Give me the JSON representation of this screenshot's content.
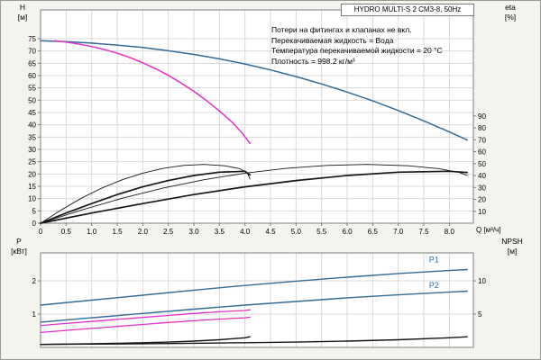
{
  "chart_data": [
    {
      "id": "hq",
      "type": "line",
      "title": "HYDRO MULTI-S 2 CM3-8, 50Hz",
      "notes": [
        "Потери на фитингах и клапанах не вкл.",
        "Перекачиваемая жидкость = Вода",
        "Температура перекачиваемой жидкости = 20 °C",
        "Плотность = 998.2 кг/м³"
      ],
      "x_label": "Q [м³/ч]",
      "xlim": [
        0,
        8.47
      ],
      "grid_x_step": 0.5,
      "x_ticks": [
        "0",
        "0.5",
        "1.0",
        "1.5",
        "2.0",
        "2.5",
        "3.0",
        "3.5",
        "4.0",
        "4.5",
        "5.0",
        "5.5",
        "6.0",
        "6.5",
        "7.0",
        "7.5",
        "8.0"
      ],
      "left_axis": {
        "label": "H",
        "unit": "[м]",
        "ticks": [
          0,
          5,
          10,
          15,
          20,
          25,
          30,
          35,
          40,
          45,
          50,
          55,
          60,
          65,
          70,
          75
        ],
        "lim": [
          0,
          86.7
        ]
      },
      "right_axis": {
        "label": "eta",
        "unit": "[%]",
        "ticks": [
          10,
          20,
          30,
          40,
          50,
          60,
          70,
          80,
          90
        ],
        "lim": [
          0,
          179
        ]
      },
      "series": [
        {
          "name": "H-2-pumps",
          "axis": "left",
          "color": "#336a94",
          "width": 1.5,
          "x": [
            0,
            0.5,
            1,
            1.5,
            2,
            2.5,
            3,
            3.5,
            4,
            4.5,
            5,
            5.5,
            6,
            6.5,
            7,
            7.5,
            8,
            8.35
          ],
          "y": [
            74.2,
            73.8,
            73.2,
            72.4,
            71.4,
            70.1,
            68.6,
            66.8,
            64.7,
            62.3,
            59.6,
            56.6,
            53.3,
            49.7,
            45.8,
            41.6,
            37.1,
            33.8
          ]
        },
        {
          "name": "H-1-pump",
          "axis": "left",
          "color": "#e233c6",
          "width": 1.5,
          "x": [
            0.28,
            0.5,
            0.75,
            1,
            1.25,
            1.5,
            1.75,
            2,
            2.25,
            2.5,
            2.75,
            3,
            3.25,
            3.5,
            3.75,
            3.95,
            4.1
          ],
          "y": [
            74.2,
            73.6,
            72.8,
            71.8,
            70.6,
            69.1,
            67.3,
            65.2,
            62.8,
            60.1,
            57.0,
            53.6,
            49.8,
            45.6,
            41.0,
            36.5,
            32.5
          ]
        },
        {
          "name": "eta-1-pump",
          "axis": "right",
          "color": "#161616",
          "width": 0.9,
          "x": [
            0,
            0.4,
            0.8,
            1.2,
            1.6,
            2,
            2.4,
            2.8,
            3.2,
            3.6,
            3.9,
            4.05,
            4.1
          ],
          "y": [
            0,
            11,
            21,
            29.5,
            36.5,
            42,
            46,
            48.5,
            49.3,
            48.2,
            45.8,
            42,
            37
          ]
        },
        {
          "name": "eta-2-pumps",
          "axis": "right",
          "color": "#161616",
          "width": 0.9,
          "x": [
            0,
            0.8,
            1.6,
            2.4,
            3.2,
            4,
            4.8,
            5.6,
            6.4,
            7.2,
            7.8,
            8.2,
            8.35
          ],
          "y": [
            0,
            11,
            21,
            29.5,
            36.5,
            42,
            46,
            48.5,
            49.3,
            48.2,
            45.8,
            42.5,
            40
          ]
        },
        {
          "name": "eta-1-pump-bold",
          "axis": "right",
          "color": "#161616",
          "width": 1.7,
          "x": [
            0,
            0.5,
            1,
            1.5,
            2,
            2.5,
            3,
            3.5,
            4,
            4.1
          ],
          "y": [
            0,
            8.5,
            16.5,
            24,
            30.5,
            35.8,
            40,
            42.8,
            43.6,
            40.5
          ]
        },
        {
          "name": "eta-2-pumps-bold",
          "axis": "right",
          "color": "#161616",
          "width": 1.7,
          "x": [
            0,
            1,
            2,
            3,
            4,
            5,
            6,
            7,
            8,
            8.35
          ],
          "y": [
            0,
            8.5,
            16.5,
            24,
            30.5,
            35.8,
            40,
            42.8,
            43.6,
            42.5
          ]
        }
      ]
    },
    {
      "id": "p-npsh",
      "type": "line",
      "xlim": [
        0,
        8.47
      ],
      "grid_x_step": 0.5,
      "x_ticks": [],
      "left_axis": {
        "label": "P",
        "unit": "[кВт]",
        "ticks": [
          1,
          2
        ],
        "lim": [
          0,
          2.84
        ]
      },
      "right_axis": {
        "label": "NPSH",
        "unit": "[м]",
        "ticks": [
          5,
          10
        ],
        "lim": [
          0,
          14.2
        ]
      },
      "series": [
        {
          "name": "P1-2-pumps",
          "axis": "left",
          "color": "#336a94",
          "width": 1.4,
          "x": [
            0,
            1,
            2,
            3,
            4,
            5,
            6,
            7,
            8,
            8.35
          ],
          "y": [
            1.27,
            1.42,
            1.57,
            1.72,
            1.86,
            1.99,
            2.11,
            2.22,
            2.31,
            2.34
          ]
        },
        {
          "name": "P2-2-pumps",
          "axis": "left",
          "color": "#336a94",
          "width": 1.4,
          "x": [
            0,
            1,
            2,
            3,
            4,
            5,
            6,
            7,
            8,
            8.35
          ],
          "y": [
            0.76,
            0.89,
            1.02,
            1.15,
            1.27,
            1.38,
            1.49,
            1.58,
            1.66,
            1.69
          ]
        },
        {
          "name": "P1-1-pump",
          "axis": "left",
          "color": "#e233c6",
          "width": 1.3,
          "x": [
            0,
            0.5,
            1,
            1.5,
            2,
            2.5,
            3,
            3.5,
            4,
            4.1
          ],
          "y": [
            0.66,
            0.72,
            0.78,
            0.84,
            0.9,
            0.96,
            1.02,
            1.07,
            1.11,
            1.13
          ]
        },
        {
          "name": "P2-1-pump",
          "axis": "left",
          "color": "#e233c6",
          "width": 1.3,
          "x": [
            0,
            0.5,
            1,
            1.5,
            2,
            2.5,
            3,
            3.5,
            4,
            4.1
          ],
          "y": [
            0.45,
            0.51,
            0.57,
            0.63,
            0.69,
            0.75,
            0.8,
            0.85,
            0.89,
            0.91
          ]
        },
        {
          "name": "NPSH-2-pumps",
          "axis": "right",
          "color": "#161616",
          "width": 1.4,
          "x": [
            0,
            1,
            2,
            3,
            4,
            5,
            6,
            7,
            8,
            8.35
          ],
          "y": [
            0.45,
            0.5,
            0.55,
            0.62,
            0.7,
            0.8,
            0.95,
            1.15,
            1.45,
            1.6
          ]
        },
        {
          "name": "NPSH-1-pump",
          "axis": "right",
          "color": "#161616",
          "width": 1.4,
          "x": [
            0,
            0.5,
            1,
            1.5,
            2,
            2.5,
            3,
            3.5,
            4,
            4.1
          ],
          "y": [
            0.45,
            0.5,
            0.55,
            0.62,
            0.7,
            0.8,
            0.95,
            1.15,
            1.45,
            1.6
          ]
        }
      ],
      "annotations": [
        {
          "text": "P1",
          "x": 7.6,
          "y": 2.56,
          "color": "#336a94"
        },
        {
          "text": "P2",
          "x": 7.6,
          "y": 1.78,
          "color": "#336a94"
        }
      ]
    }
  ]
}
